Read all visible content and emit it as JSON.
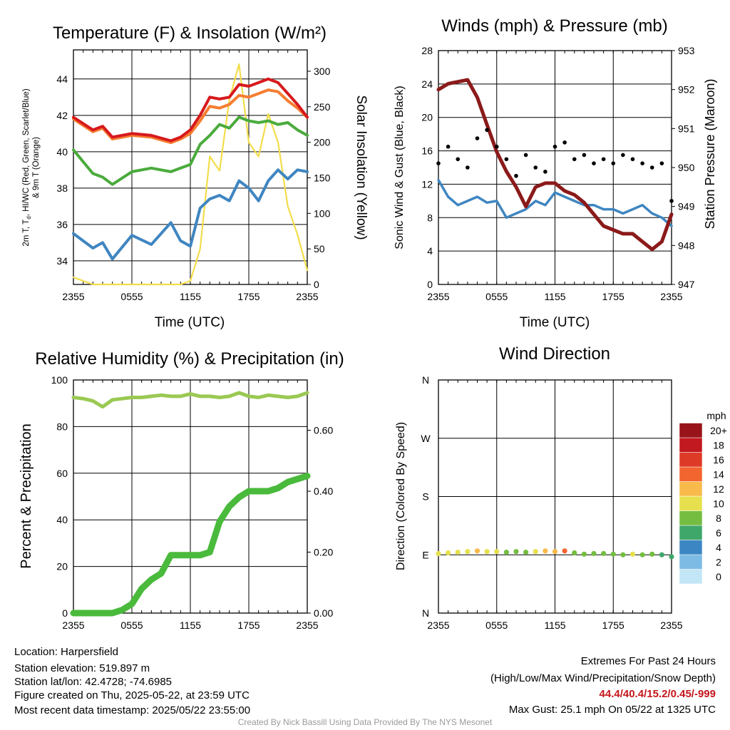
{
  "chart_data": [
    {
      "type": "line",
      "title": "Temperature (F) & Insolation (W/m²)",
      "xlabel": "Time (UTC)",
      "ylabel": "2m T, Td, HI/WC (Red, Green, Scarlet/Blue) & 9m T (Orange)",
      "ylabel_line1": "2m T, T",
      "ylabel_sub": "d",
      "ylabel_line1_rest": ", HI/WC (Red, Green, Scarlet/Blue)",
      "ylabel_line2": "& 9m T (Orange)",
      "ylabel_right": "Solar Insolation (Yellow)",
      "x_ticks": [
        "2355",
        "0555",
        "1155",
        "1755",
        "2355"
      ],
      "y_ticks": [
        34,
        36,
        38,
        40,
        42,
        44
      ],
      "ylim": [
        32.7,
        45.6
      ],
      "y2_ticks": [
        0,
        50,
        100,
        150,
        200,
        250,
        300
      ],
      "y2lim": [
        0,
        330
      ],
      "x_hours": [
        0,
        2,
        3,
        4,
        6,
        8,
        10,
        11,
        12,
        13,
        14,
        15,
        16,
        17,
        18,
        19,
        20,
        21,
        22,
        23,
        24
      ],
      "series": [
        {
          "color": "#d7191c",
          "values": [
            41.9,
            41.2,
            41.4,
            40.8,
            41.0,
            40.9,
            40.6,
            40.8,
            41.2,
            42.0,
            43.0,
            42.9,
            43.0,
            43.7,
            43.6,
            43.8,
            44.0,
            43.8,
            43.2,
            42.6,
            41.9
          ]
        },
        {
          "color": "#f67d31",
          "values": [
            41.8,
            41.1,
            41.3,
            40.7,
            40.9,
            40.8,
            40.5,
            40.7,
            41.0,
            41.7,
            42.5,
            42.4,
            42.6,
            43.1,
            43.0,
            43.2,
            43.4,
            43.3,
            42.8,
            42.4,
            41.9
          ]
        },
        {
          "color": "#4aab3c",
          "values": [
            40.1,
            38.8,
            38.6,
            38.2,
            38.9,
            39.1,
            38.9,
            39.1,
            39.3,
            40.4,
            40.9,
            41.5,
            41.3,
            41.9,
            41.7,
            41.6,
            41.7,
            41.5,
            41.6,
            41.2,
            40.9
          ]
        },
        {
          "color": "#3f86c1",
          "values": [
            35.5,
            34.7,
            35.0,
            34.1,
            35.4,
            34.9,
            36.1,
            35.1,
            34.8,
            36.9,
            37.4,
            37.6,
            37.3,
            38.4,
            38.0,
            37.3,
            38.4,
            39.0,
            38.5,
            39.0,
            38.9
          ]
        },
        {
          "color": "#f2dd4b",
          "axis": "right",
          "values": [
            10,
            0,
            0,
            0,
            0,
            0,
            0,
            0,
            5,
            50,
            180,
            160,
            260,
            310,
            200,
            180,
            240,
            200,
            110,
            70,
            20
          ]
        }
      ]
    },
    {
      "type": "line",
      "title": "Winds (mph) & Pressure (mb)",
      "xlabel": "Time (UTC)",
      "ylabel": "Sonic Wind & Gust (Blue, Black)",
      "ylabel_right": "Station Pressure (Maroon)",
      "x_ticks": [
        "2355",
        "0555",
        "1155",
        "1755",
        "2355"
      ],
      "y_ticks": [
        0,
        4,
        8,
        12,
        16,
        20,
        24,
        28
      ],
      "ylim": [
        0,
        28
      ],
      "y2_ticks": [
        947,
        948,
        949,
        950,
        951,
        952,
        953
      ],
      "y2lim": [
        947,
        953
      ],
      "x_hours": [
        0,
        1,
        2,
        3,
        4,
        5,
        6,
        7,
        8,
        9,
        10,
        11,
        12,
        13,
        14,
        15,
        16,
        17,
        18,
        19,
        20,
        21,
        22,
        23,
        24
      ],
      "series": [
        {
          "color": "#3f86c1",
          "values": [
            12.5,
            10.5,
            9.5,
            10.0,
            10.5,
            9.8,
            10.0,
            8.0,
            8.5,
            9.0,
            10.0,
            9.5,
            11.0,
            10.5,
            10.0,
            9.5,
            9.5,
            9.0,
            9.0,
            8.5,
            9.0,
            9.5,
            8.5,
            8.0,
            7.0
          ]
        },
        {
          "color": "#8b1a1a",
          "axis": "right",
          "values": [
            952.0,
            952.15,
            952.2,
            952.25,
            951.8,
            951.1,
            950.4,
            949.9,
            949.5,
            949.0,
            949.5,
            949.6,
            949.6,
            949.4,
            949.3,
            949.1,
            948.8,
            948.5,
            948.4,
            948.3,
            948.3,
            948.1,
            947.9,
            948.1,
            948.8
          ]
        },
        {
          "color": "#000000",
          "values": [
            14.5,
            16.5,
            15.0,
            14.0,
            17.5,
            18.5,
            16.5,
            15.0,
            13.0,
            15.5,
            14.0,
            13.5,
            16.5,
            17.0,
            15.0,
            15.5,
            14.5,
            15.0,
            14.5,
            15.5,
            15.0,
            14.5,
            14.0,
            14.5,
            10.0
          ]
        }
      ]
    },
    {
      "type": "line",
      "title": "Relative Humidity (%) & Precipitation (in)",
      "xlabel": "",
      "ylabel": "Percent & Precipitation",
      "x_ticks": [
        "2355",
        "0555",
        "1155",
        "1755",
        "2355"
      ],
      "y_ticks": [
        0,
        20,
        40,
        60,
        80,
        100
      ],
      "ylim": [
        0,
        100
      ],
      "y2_ticks": [
        "0.00",
        "0.20",
        "0.40",
        "0.60"
      ],
      "y2lim": [
        0,
        0.765
      ],
      "x_hours": [
        0,
        1,
        2,
        3,
        4,
        5,
        6,
        7,
        8,
        9,
        10,
        11,
        12,
        13,
        14,
        15,
        16,
        17,
        18,
        19,
        20,
        21,
        22,
        23,
        24
      ],
      "series": [
        {
          "color": "#9ac953",
          "values": [
            92.5,
            92.0,
            91.0,
            88.5,
            91.5,
            92.0,
            92.5,
            92.5,
            93.0,
            93.5,
            93.0,
            93.0,
            94.0,
            93.0,
            93.0,
            92.5,
            93.0,
            94.5,
            93.0,
            92.5,
            93.5,
            93.0,
            92.5,
            93.0,
            94.5
          ]
        },
        {
          "color": "#4aba3c",
          "axis": "right",
          "values": [
            0.0,
            0.0,
            0.0,
            0.0,
            0.0,
            0.01,
            0.03,
            0.08,
            0.11,
            0.13,
            0.19,
            0.19,
            0.19,
            0.19,
            0.2,
            0.3,
            0.35,
            0.38,
            0.4,
            0.4,
            0.4,
            0.41,
            0.43,
            0.44,
            0.45
          ]
        }
      ]
    },
    {
      "type": "scatter",
      "title": "Wind Direction",
      "ylabel": "Direction (Colored By Speed)",
      "x_ticks": [
        "2355",
        "0555",
        "1155",
        "1755",
        "2355"
      ],
      "y_ticks": [
        "N",
        "E",
        "S",
        "W",
        "N"
      ],
      "legend_title": "mph",
      "legend_labels": [
        "0",
        "2",
        "4",
        "6",
        "8",
        "10",
        "12",
        "14",
        "16",
        "18",
        "20+"
      ],
      "legend_colors": [
        "#c3e6f6",
        "#7dbbe5",
        "#3d86c4",
        "#40a76b",
        "#74bd41",
        "#e6e04f",
        "#f8ba4a",
        "#f3652e",
        "#de3a28",
        "#c2181f",
        "#98141a"
      ],
      "x_hours": [
        0,
        1,
        2,
        3,
        4,
        5,
        6,
        7,
        8,
        9,
        10,
        11,
        12,
        13,
        14,
        15,
        16,
        17,
        18,
        19,
        20,
        21,
        22,
        23,
        24
      ],
      "direction_deg": [
        92,
        93,
        94,
        95,
        96,
        95,
        95,
        94,
        95,
        94,
        95,
        96,
        95,
        96,
        93,
        91,
        92,
        92,
        91,
        90,
        91,
        90,
        91,
        90,
        87
      ],
      "speed_mph": [
        11,
        10,
        10,
        11,
        12,
        10,
        11,
        9,
        9,
        9,
        11,
        12,
        13,
        14,
        8,
        8,
        8,
        8,
        9,
        9,
        10,
        8,
        8,
        7,
        6
      ]
    }
  ],
  "footer": {
    "location": "Location: Harpersfield",
    "elevation": "Station elevation: 519.897 m",
    "latlon": "Station lat/lon: 42.4728; -74.6985",
    "created": "Figure created on Thu, 2025-05-22, at 23:59 UTC",
    "recent": "Most recent data timestamp: 2025/05/22 23:55:00",
    "extremes_title": "Extremes For Past 24 Hours",
    "extremes_sub": "(High/Low/Max Wind/Precipitation/Snow Depth)",
    "extremes_values": "44.4/40.4/15.2/0.45/-999",
    "max_gust": "Max Gust: 25.1 mph On 05/22 at 1325 UTC",
    "credit": "Created By Nick Bassill Using Data Provided By The NYS Mesonet"
  }
}
